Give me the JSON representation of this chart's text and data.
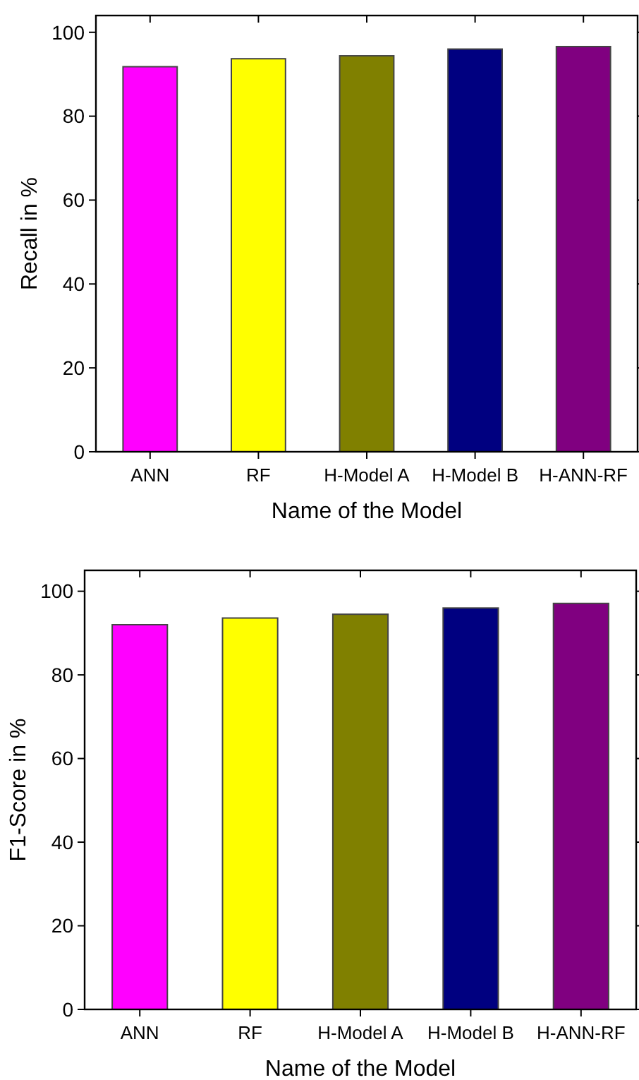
{
  "chart_data": [
    {
      "type": "bar",
      "xlabel": "Name of the Model",
      "ylabel": "Recall in %",
      "categories": [
        "ANN",
        "RF",
        "H-Model A",
        "H-Model B",
        "H-ANN-RF"
      ],
      "values": [
        91.8,
        93.7,
        94.4,
        96.0,
        96.6
      ],
      "colors": [
        "#ff00ff",
        "#ffff00",
        "#808000",
        "#000080",
        "#800080"
      ],
      "ylim": [
        0,
        104
      ],
      "yticks": [
        0,
        20,
        40,
        60,
        80,
        100
      ],
      "grid": false
    },
    {
      "type": "bar",
      "xlabel": "Name of the Model",
      "ylabel": "F1-Score in %",
      "categories": [
        "ANN",
        "RF",
        "H-Model A",
        "H-Model B",
        "H-ANN-RF"
      ],
      "values": [
        92.0,
        93.6,
        94.5,
        96.0,
        97.1
      ],
      "colors": [
        "#ff00ff",
        "#ffff00",
        "#808000",
        "#000080",
        "#800080"
      ],
      "ylim": [
        0,
        105
      ],
      "yticks": [
        0,
        20,
        40,
        60,
        80,
        100
      ],
      "grid": false
    }
  ]
}
